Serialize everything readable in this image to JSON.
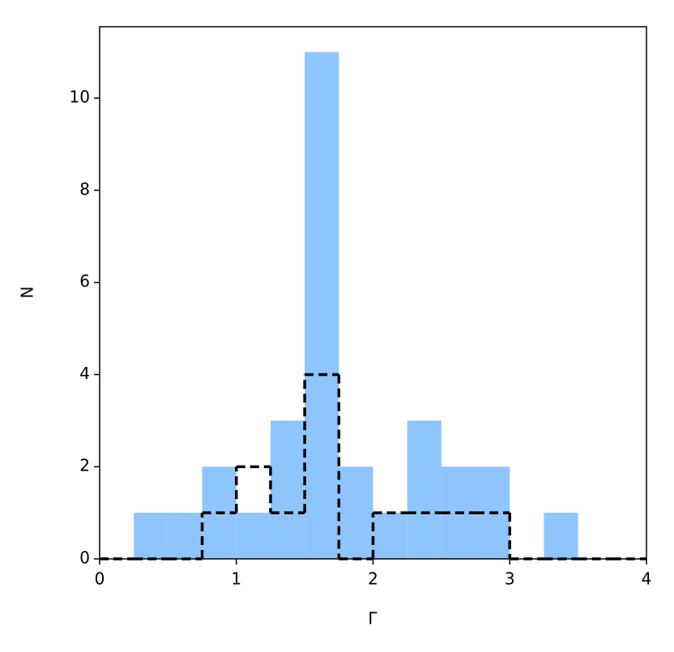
{
  "chart_data": {
    "type": "histogram",
    "x_label": "Γ",
    "y_label": "N",
    "bins": [
      0,
      0.25,
      0.5,
      0.75,
      1,
      1.25,
      1.5,
      1.75,
      2,
      2.25,
      2.5,
      2.75,
      3,
      3.25,
      3.5,
      3.75,
      4
    ],
    "series": [
      {
        "style": "filled",
        "color": "#8fc5fd",
        "values": [
          0,
          1,
          1,
          2,
          1,
          3,
          11,
          2,
          1,
          3,
          2,
          2,
          0,
          1,
          0,
          0
        ]
      },
      {
        "style": "dashed-step",
        "color": "#000000",
        "values": [
          0,
          0,
          0,
          1,
          2,
          1,
          4,
          0,
          1,
          1,
          1,
          1,
          0,
          0,
          0,
          0
        ]
      }
    ],
    "xlim": [
      0,
      4
    ],
    "ylim": [
      0,
      11.55
    ],
    "xticks": [
      0,
      1,
      2,
      3,
      4
    ],
    "yticks": [
      0,
      2,
      4,
      6,
      8,
      10
    ]
  }
}
